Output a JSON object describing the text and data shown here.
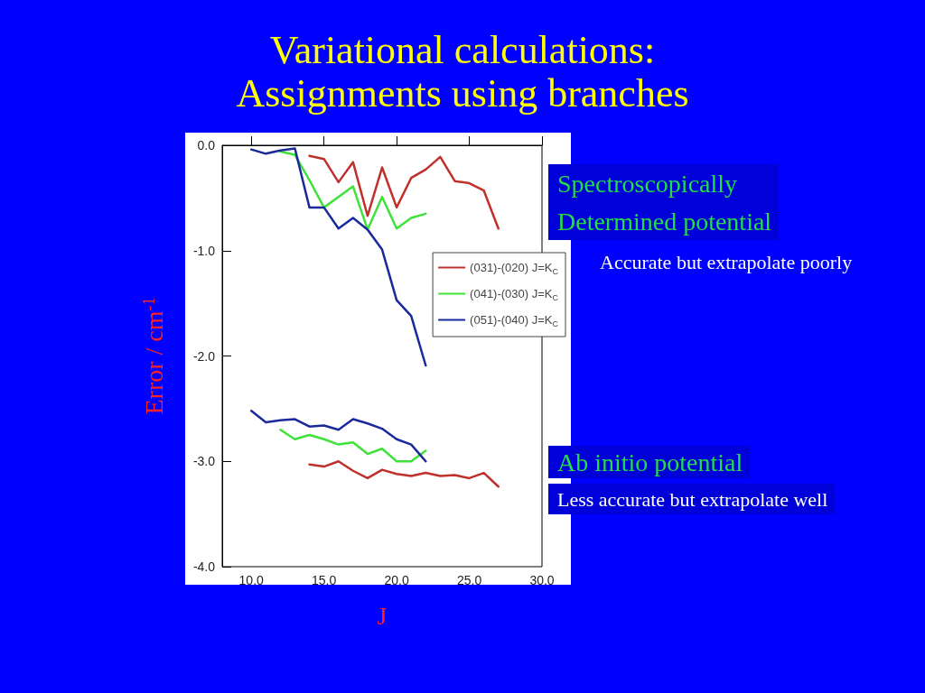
{
  "chart_data": {
    "type": "line",
    "title": "Variational calculations:\nAssignments using branches",
    "xlabel": "J",
    "ylabel": "Error / cm$^{-1}$",
    "annotations": [
      "Spectroscopically\nDetermined potential",
      "Accurate but extrapolate poorly",
      "Ab initio potential",
      "Less accurate but extrapolate well"
    ],
    "xlim": [
      8,
      30
    ],
    "xticks": [
      {
        "value": 10,
        "label": "10.0"
      },
      {
        "value": 15,
        "label": "15.0"
      },
      {
        "value": 20,
        "label": "20.0"
      },
      {
        "value": 25,
        "label": "25.0"
      },
      {
        "value": 30,
        "label": "30.0"
      }
    ],
    "ylim": [
      -4,
      0
    ],
    "yticks": [
      {
        "value": -4,
        "label": "-4.0"
      },
      {
        "value": -3,
        "label": "-3.0"
      },
      {
        "value": -2,
        "label": "-2.0"
      },
      {
        "value": -1,
        "label": "-1.0"
      },
      {
        "value": 0,
        "label": "0.0"
      }
    ],
    "grid": false,
    "legend": "right",
    "marker": "none",
    "line_style": "solid",
    "series": [
      {
        "name": "(031)-(020) J=K$_{C}$",
        "color": "#c0302c",
        "x": [
          14,
          15,
          16,
          17,
          18,
          19,
          20,
          21,
          22,
          23,
          24,
          25,
          26,
          27
        ],
        "values": [
          -0.1,
          -0.13,
          -0.35,
          -0.16,
          -0.67,
          -0.21,
          -0.59,
          -0.31,
          -0.23,
          -0.11,
          -0.34,
          -0.36,
          -0.43,
          -0.79
        ]
      },
      {
        "name": "(041)-(030) J=K$_{C}$",
        "color": "#3ee23a",
        "x": [
          12,
          13,
          14,
          15,
          16,
          17,
          18,
          19,
          20,
          21,
          22
        ],
        "values": [
          -0.06,
          -0.09,
          -0.33,
          -0.59,
          -0.49,
          -0.39,
          -0.8,
          -0.49,
          -0.79,
          -0.69,
          -0.65
        ]
      },
      {
        "name": "(051)-(040) J=K$_{C}$",
        "color": "#1a2a9c",
        "x": [
          10,
          11,
          12,
          13,
          14,
          15,
          16,
          17,
          18,
          19,
          20,
          21,
          22
        ],
        "values": [
          -0.04,
          -0.08,
          -0.05,
          -0.03,
          -0.59,
          -0.59,
          -0.79,
          -0.69,
          -0.8,
          -0.99,
          -1.47,
          -1.62,
          -2.09
        ]
      },
      {
        "color": "#c0302c",
        "x": [
          14,
          15,
          16,
          17,
          18,
          19,
          20,
          21,
          22,
          23,
          24,
          25,
          26,
          27
        ],
        "values": [
          -3.03,
          -3.05,
          -3.0,
          -3.09,
          -3.16,
          -3.08,
          -3.12,
          -3.14,
          -3.11,
          -3.14,
          -3.13,
          -3.16,
          -3.11,
          -3.24
        ]
      },
      {
        "color": "#3ee23a",
        "x": [
          12,
          13,
          14,
          15,
          16,
          17,
          18,
          19,
          20,
          21,
          22
        ],
        "values": [
          -2.7,
          -2.79,
          -2.75,
          -2.79,
          -2.84,
          -2.82,
          -2.93,
          -2.88,
          -3.0,
          -3.0,
          -2.9
        ]
      },
      {
        "color": "#1a2a9c",
        "x": [
          10,
          11,
          12,
          13,
          14,
          15,
          16,
          17,
          18,
          19,
          20,
          21,
          22
        ],
        "values": [
          -2.52,
          -2.63,
          -2.61,
          -2.6,
          -2.67,
          -2.66,
          -2.7,
          -2.6,
          -2.64,
          -2.69,
          -2.79,
          -2.84,
          -3.0
        ]
      }
    ]
  }
}
